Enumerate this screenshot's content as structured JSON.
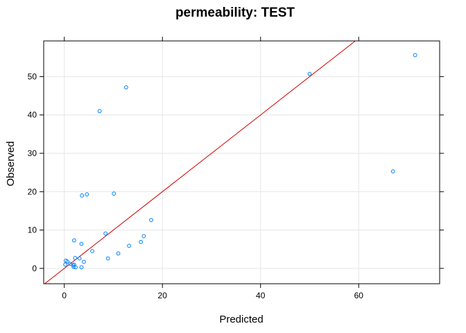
{
  "chart_data": {
    "type": "scatter",
    "title": "permeability: TEST",
    "xlabel": "Predicted",
    "ylabel": "Observed",
    "xlim": [
      -4.2,
      76.5
    ],
    "ylim": [
      -4.0,
      59.3
    ],
    "xticks": [
      0,
      20,
      40,
      60
    ],
    "yticks": [
      0,
      10,
      20,
      30,
      40,
      50
    ],
    "grid": true,
    "reference_line": {
      "slope": 1,
      "intercept": 0,
      "color": "#d00000"
    },
    "point_color": "#0080ff",
    "points": [
      {
        "x": 0.2,
        "y": 1.0
      },
      {
        "x": 0.3,
        "y": 2.0
      },
      {
        "x": 0.6,
        "y": 1.8
      },
      {
        "x": 1.2,
        "y": 1.2
      },
      {
        "x": 1.8,
        "y": 0.8
      },
      {
        "x": 1.9,
        "y": 0.4
      },
      {
        "x": 2.0,
        "y": 1.0
      },
      {
        "x": 2.2,
        "y": 2.7
      },
      {
        "x": 2.3,
        "y": 0.3
      },
      {
        "x": 3.1,
        "y": 2.6
      },
      {
        "x": 3.5,
        "y": 0.3
      },
      {
        "x": 4.0,
        "y": 1.7
      },
      {
        "x": 2.0,
        "y": 7.3
      },
      {
        "x": 3.5,
        "y": 6.4
      },
      {
        "x": 5.7,
        "y": 4.5
      },
      {
        "x": 8.4,
        "y": 9.1
      },
      {
        "x": 8.9,
        "y": 2.6
      },
      {
        "x": 11.0,
        "y": 3.9
      },
      {
        "x": 13.2,
        "y": 5.9
      },
      {
        "x": 15.6,
        "y": 6.9
      },
      {
        "x": 16.2,
        "y": 8.4
      },
      {
        "x": 17.7,
        "y": 12.6
      },
      {
        "x": 3.6,
        "y": 19.0
      },
      {
        "x": 4.6,
        "y": 19.3
      },
      {
        "x": 10.1,
        "y": 19.5
      },
      {
        "x": 7.2,
        "y": 41.0
      },
      {
        "x": 12.6,
        "y": 47.2
      },
      {
        "x": 50.0,
        "y": 50.7
      },
      {
        "x": 67.0,
        "y": 25.3
      },
      {
        "x": 71.5,
        "y": 55.6
      }
    ]
  }
}
